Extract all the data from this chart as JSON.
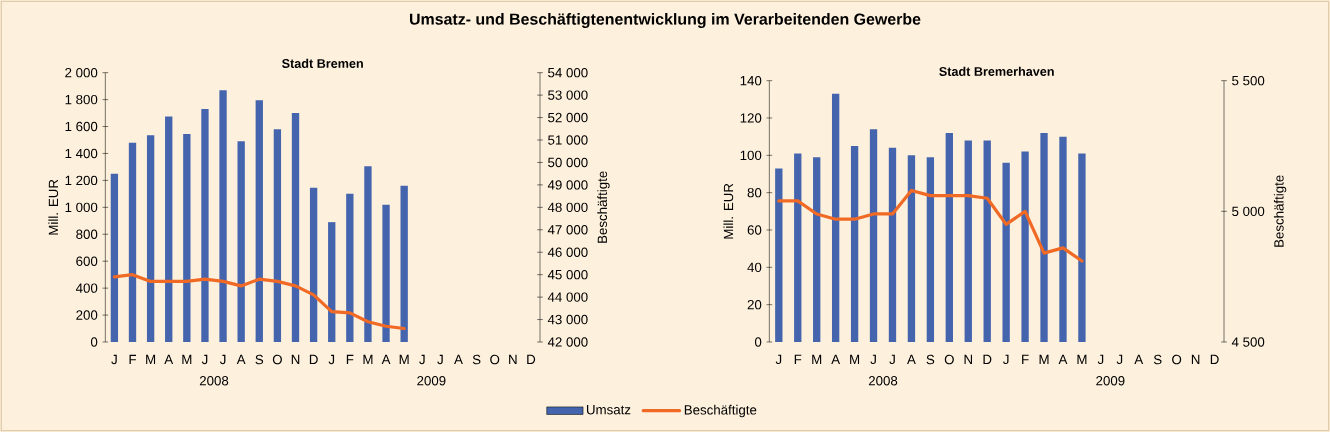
{
  "chart_data": [
    {
      "type": "bar",
      "title": "Umsatz- und Beschäftigtenentwicklung im Verarbeitenden Gewerbe",
      "subtitle": "Stadt Bremen",
      "categories": [
        "J",
        "F",
        "M",
        "A",
        "M",
        "J",
        "J",
        "A",
        "S",
        "O",
        "N",
        "D",
        "J",
        "F",
        "M",
        "A",
        "M",
        "J",
        "J",
        "A",
        "S",
        "O",
        "N",
        "D"
      ],
      "series": [
        {
          "name": "Umsatz",
          "color": "#4464ae",
          "values": [
            1250,
            1480,
            1535,
            1675,
            1545,
            1730,
            1870,
            1490,
            1795,
            1580,
            1700,
            1145,
            890,
            1100,
            1305,
            1020,
            1160,
            null,
            null,
            null,
            null,
            null,
            null,
            null
          ]
        },
        {
          "name": "Beschäftigte",
          "type": "line",
          "axis": "y2",
          "color": "#f06a25",
          "values": [
            44900,
            45000,
            44700,
            44700,
            44700,
            44800,
            44700,
            44500,
            44800,
            44700,
            44500,
            44100,
            43350,
            43300,
            42900,
            42700,
            42600,
            null,
            null,
            null,
            null,
            null,
            null,
            null
          ]
        }
      ],
      "ylabel": "Mill. EUR",
      "y2label": "Beschäftigte",
      "ylim": [
        0,
        2000
      ],
      "yticks": [
        0,
        200,
        400,
        600,
        800,
        {
          "value": 1000,
          "label": "1 000"
        },
        {
          "value": 1200,
          "label": "1 200"
        },
        {
          "value": 1400,
          "label": "1 400"
        },
        {
          "value": 1600,
          "label": "1 600"
        },
        {
          "value": 1800,
          "label": "1 800"
        },
        {
          "value": 2000,
          "label": "2 000"
        }
      ],
      "y2lim": [
        42000,
        54000
      ],
      "y2ticks": [
        {
          "value": 42000,
          "label": "42 000"
        },
        {
          "value": 43000,
          "label": "43 000"
        },
        {
          "value": 44000,
          "label": "44 000"
        },
        {
          "value": 45000,
          "label": "45 000"
        },
        {
          "value": 46000,
          "label": "46 000"
        },
        {
          "value": 47000,
          "label": "47 000"
        },
        {
          "value": 48000,
          "label": "48 000"
        },
        {
          "value": 49000,
          "label": "49 000"
        },
        {
          "value": 50000,
          "label": "50 000"
        },
        {
          "value": 51000,
          "label": "51 000"
        },
        {
          "value": 52000,
          "label": "52 000"
        },
        {
          "value": 53000,
          "label": "53 000"
        },
        {
          "value": 54000,
          "label": "54 000"
        }
      ],
      "annotations": [
        "2008",
        "2009"
      ],
      "legend": "bottom"
    },
    {
      "type": "bar",
      "subtitle": "Stadt Bremerhaven",
      "categories": [
        "J",
        "F",
        "M",
        "A",
        "M",
        "J",
        "J",
        "A",
        "S",
        "O",
        "N",
        "D",
        "J",
        "F",
        "M",
        "A",
        "M",
        "J",
        "J",
        "A",
        "S",
        "O",
        "N",
        "D"
      ],
      "series": [
        {
          "color": "#4464ae",
          "values": [
            93,
            101,
            99,
            133,
            105,
            114,
            104,
            100,
            99,
            112,
            108,
            108,
            96,
            102,
            112,
            110,
            101,
            null,
            null,
            null,
            null,
            null,
            null,
            null
          ]
        },
        {
          "type": "line",
          "axis": "y2",
          "color": "#f06a25",
          "values": [
            5040,
            5040,
            4990,
            4970,
            4970,
            4990,
            4990,
            5080,
            5060,
            5060,
            5060,
            5050,
            4950,
            5000,
            4840,
            4860,
            4810,
            null,
            null,
            null,
            null,
            null,
            null,
            null
          ]
        }
      ],
      "ylabel": "Mill. EUR",
      "y2label": "Beschäftigte",
      "ylim": [
        0,
        140
      ],
      "yticks": [
        0,
        20,
        40,
        60,
        80,
        100,
        120,
        140
      ],
      "y2lim": [
        4500,
        5500
      ],
      "y2ticks": [
        {
          "value": 4500,
          "label": "4 500"
        },
        {
          "value": 5000,
          "label": "5 000"
        },
        {
          "value": 5500,
          "label": "5 500"
        }
      ],
      "annotations": [
        "2008",
        "2009"
      ]
    }
  ]
}
